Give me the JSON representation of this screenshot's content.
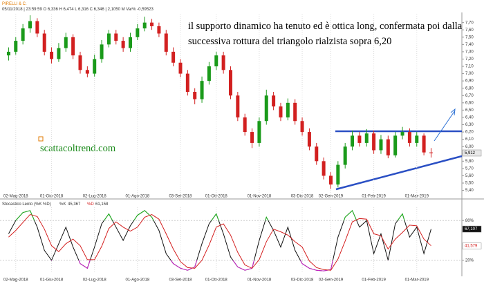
{
  "header": {
    "symbol": "PIRELLI & C.",
    "info": "05/11/2018 | 23:59:59 O 6,336 H 6,474 L 6,316 C 6,346 | 2,1050 M Var% -0,59523"
  },
  "chart_data": [
    {
      "type": "candlestick",
      "annotation": [
        "il supporto dinamico ha tenuto ed è ottica long, confermata poi dalla",
        "successiva rottura del triangolo rialzista sopra 6,20"
      ],
      "watermark": "scattacoltrend.com",
      "up_color": "#1a9a1a",
      "down_color": "#d22020",
      "candles": [
        [
          7.25,
          7.36,
          7.18,
          7.3
        ],
        [
          7.3,
          7.5,
          7.26,
          7.45
        ],
        [
          7.45,
          7.68,
          7.4,
          7.62
        ],
        [
          7.62,
          7.8,
          7.56,
          7.72
        ],
        [
          7.72,
          7.76,
          7.5,
          7.55
        ],
        [
          7.55,
          7.6,
          7.25,
          7.3
        ],
        [
          7.3,
          7.36,
          7.14,
          7.2
        ],
        [
          7.2,
          7.42,
          7.16,
          7.35
        ],
        [
          7.35,
          7.56,
          7.3,
          7.5
        ],
        [
          7.5,
          7.54,
          7.2,
          7.25
        ],
        [
          7.25,
          7.3,
          7.0,
          7.05
        ],
        [
          7.05,
          7.1,
          6.95,
          7.0
        ],
        [
          7.0,
          7.26,
          6.96,
          7.2
        ],
        [
          7.2,
          7.46,
          7.15,
          7.4
        ],
        [
          7.4,
          7.6,
          7.36,
          7.55
        ],
        [
          7.55,
          7.6,
          7.4,
          7.45
        ],
        [
          7.45,
          7.5,
          7.3,
          7.35
        ],
        [
          7.35,
          7.56,
          7.3,
          7.5
        ],
        [
          7.5,
          7.68,
          7.46,
          7.62
        ],
        [
          7.62,
          7.78,
          7.58,
          7.7
        ],
        [
          7.7,
          7.75,
          7.6,
          7.65
        ],
        [
          7.65,
          7.7,
          7.5,
          7.55
        ],
        [
          7.55,
          7.6,
          7.25,
          7.3
        ],
        [
          7.3,
          7.36,
          7.1,
          7.15
        ],
        [
          7.15,
          7.2,
          6.95,
          7.0
        ],
        [
          7.0,
          7.05,
          6.7,
          6.75
        ],
        [
          6.75,
          6.8,
          6.58,
          6.65
        ],
        [
          6.65,
          6.96,
          6.6,
          6.9
        ],
        [
          6.9,
          7.16,
          6.85,
          7.1
        ],
        [
          7.1,
          7.3,
          7.05,
          7.25
        ],
        [
          7.25,
          7.3,
          7.0,
          7.05
        ],
        [
          7.05,
          7.1,
          6.65,
          6.7
        ],
        [
          6.7,
          6.75,
          6.35,
          6.4
        ],
        [
          6.4,
          6.45,
          6.15,
          6.2
        ],
        [
          6.2,
          6.25,
          5.98,
          6.05
        ],
        [
          6.05,
          6.4,
          6.0,
          6.35
        ],
        [
          6.35,
          6.78,
          6.3,
          6.7
        ],
        [
          6.7,
          6.75,
          6.5,
          6.55
        ],
        [
          6.55,
          6.6,
          6.35,
          6.4
        ],
        [
          6.4,
          6.66,
          6.36,
          6.6
        ],
        [
          6.6,
          6.65,
          6.3,
          6.35
        ],
        [
          6.35,
          6.4,
          6.15,
          6.2
        ],
        [
          6.2,
          6.25,
          5.95,
          6.0
        ],
        [
          6.0,
          6.05,
          5.75,
          5.8
        ],
        [
          5.8,
          5.85,
          5.55,
          5.6
        ],
        [
          5.6,
          5.65,
          5.42,
          5.48
        ],
        [
          5.48,
          5.8,
          5.44,
          5.75
        ],
        [
          5.75,
          6.05,
          5.7,
          6.0
        ],
        [
          6.0,
          6.22,
          5.95,
          6.15
        ],
        [
          6.15,
          6.2,
          6.0,
          6.05
        ],
        [
          6.05,
          6.24,
          6.0,
          6.18
        ],
        [
          6.18,
          6.22,
          5.9,
          5.95
        ],
        [
          5.95,
          6.16,
          5.9,
          6.1
        ],
        [
          6.1,
          6.15,
          5.84,
          5.88
        ],
        [
          5.88,
          6.2,
          5.85,
          6.15
        ],
        [
          6.15,
          6.27,
          6.1,
          6.2
        ],
        [
          6.2,
          6.25,
          6.0,
          6.05
        ],
        [
          6.05,
          6.2,
          6.0,
          6.15
        ],
        [
          6.15,
          6.18,
          5.88,
          5.92
        ],
        [
          5.92,
          5.98,
          5.85,
          5.91
        ]
      ],
      "last_label": {
        "value": 5.912,
        "label": "5,912"
      },
      "xlim": [
        -1.2,
        63.3
      ],
      "ylim": [
        5.32,
        7.82
      ],
      "xticks": [
        {
          "value": 1,
          "label": "02-Mag-2018"
        },
        {
          "value": 6,
          "label": "01-Giu-2018"
        },
        {
          "value": 12,
          "label": "02-Lug-2018"
        },
        {
          "value": 18,
          "label": "01-Ago-2018"
        },
        {
          "value": 24,
          "label": "03-Set-2018"
        },
        {
          "value": 29,
          "label": "01-Ott-2018"
        },
        {
          "value": 35,
          "label": "01-Nov-2018"
        },
        {
          "value": 41,
          "label": "03-Dic-2018"
        },
        {
          "value": 45,
          "label": "02-Gen-2019"
        },
        {
          "value": 51,
          "label": "01-Feb-2019"
        },
        {
          "value": 57,
          "label": "01-Mar-2019"
        }
      ],
      "yticks": [
        {
          "value": 5.4,
          "label": "5,40"
        },
        {
          "value": 5.5,
          "label": "5,50"
        },
        {
          "value": 5.6,
          "label": "5,60"
        },
        {
          "value": 5.7,
          "label": "5,70"
        },
        {
          "value": 5.8,
          "label": "5,80"
        },
        {
          "value": 5.9,
          "label": "5,90"
        },
        {
          "value": 6.0,
          "label": "6,00"
        },
        {
          "value": 6.1,
          "label": "6,10"
        },
        {
          "value": 6.2,
          "label": "6,20"
        },
        {
          "value": 6.3,
          "label": "6,30"
        },
        {
          "value": 6.4,
          "label": "6,40"
        },
        {
          "value": 6.5,
          "label": "6,50"
        },
        {
          "value": 6.6,
          "label": "6,60"
        },
        {
          "value": 6.7,
          "label": "6,70"
        },
        {
          "value": 6.8,
          "label": "6,80"
        },
        {
          "value": 6.9,
          "label": "6,90"
        },
        {
          "value": 7.0,
          "label": "7,00"
        },
        {
          "value": 7.1,
          "label": "7,10"
        },
        {
          "value": 7.2,
          "label": "7,20"
        },
        {
          "value": 7.3,
          "label": "7,30"
        },
        {
          "value": 7.4,
          "label": "7,40"
        },
        {
          "value": 7.5,
          "label": "7,50"
        },
        {
          "value": 7.6,
          "label": "7,60"
        },
        {
          "value": 7.7,
          "label": "7,70"
        }
      ]
    },
    {
      "type": "line",
      "title": "Stocastico Lento (%K %D)",
      "legend_info": [
        "%K",
        "45,367",
        "%D",
        "61,158"
      ],
      "overbought_color": "#22bb22",
      "oversold_color": "#cc22cc",
      "series": [
        {
          "name": "%K",
          "color": "#111111",
          "values": [
            60,
            80,
            92,
            95,
            70,
            35,
            20,
            45,
            70,
            40,
            15,
            8,
            40,
            75,
            90,
            70,
            50,
            72,
            88,
            95,
            85,
            65,
            30,
            15,
            8,
            5,
            10,
            45,
            75,
            90,
            60,
            25,
            10,
            5,
            8,
            50,
            85,
            65,
            40,
            70,
            35,
            15,
            8,
            5,
            4,
            6,
            55,
            85,
            95,
            70,
            80,
            30,
            60,
            20,
            75,
            90,
            55,
            70,
            30,
            67
          ],
          "last_label": {
            "value": 67.107,
            "label": "67,107"
          }
        },
        {
          "name": "%D",
          "color": "#d42020",
          "values": [
            55,
            65,
            77,
            89,
            86,
            67,
            42,
            33,
            45,
            52,
            42,
            21,
            21,
            41,
            68,
            78,
            70,
            64,
            70,
            85,
            89,
            82,
            60,
            37,
            18,
            9,
            8,
            20,
            43,
            70,
            75,
            58,
            32,
            13,
            8,
            21,
            48,
            67,
            63,
            58,
            48,
            40,
            19,
            9,
            6,
            5,
            22,
            49,
            78,
            83,
            82,
            60,
            57,
            37,
            52,
            62,
            73,
            72,
            52,
            42
          ],
          "last_label": {
            "value": 41.579,
            "label": "41,579"
          }
        }
      ],
      "xlim": [
        -1.2,
        63.3
      ],
      "ylim": [
        0,
        100
      ],
      "xticks": [
        {
          "value": 1,
          "label": "02-Mag-2018"
        },
        {
          "value": 6,
          "label": "01-Giu-2018"
        },
        {
          "value": 12,
          "label": "02-Lug-2018"
        },
        {
          "value": 18,
          "label": "01-Ago-2018"
        },
        {
          "value": 24,
          "label": "03-Set-2018"
        },
        {
          "value": 29,
          "label": "01-Ott-2018"
        },
        {
          "value": 35,
          "label": "01-Nov-2018"
        },
        {
          "value": 41,
          "label": "03-Dic-2018"
        },
        {
          "value": 45,
          "label": "02-Gen-2019"
        },
        {
          "value": 51,
          "label": "01-Feb-2019"
        },
        {
          "value": 57,
          "label": "01-Mar-2019"
        }
      ],
      "yticks": [
        {
          "value": 80,
          "label": "80%"
        },
        {
          "value": 20,
          "label": "20%"
        }
      ]
    }
  ]
}
